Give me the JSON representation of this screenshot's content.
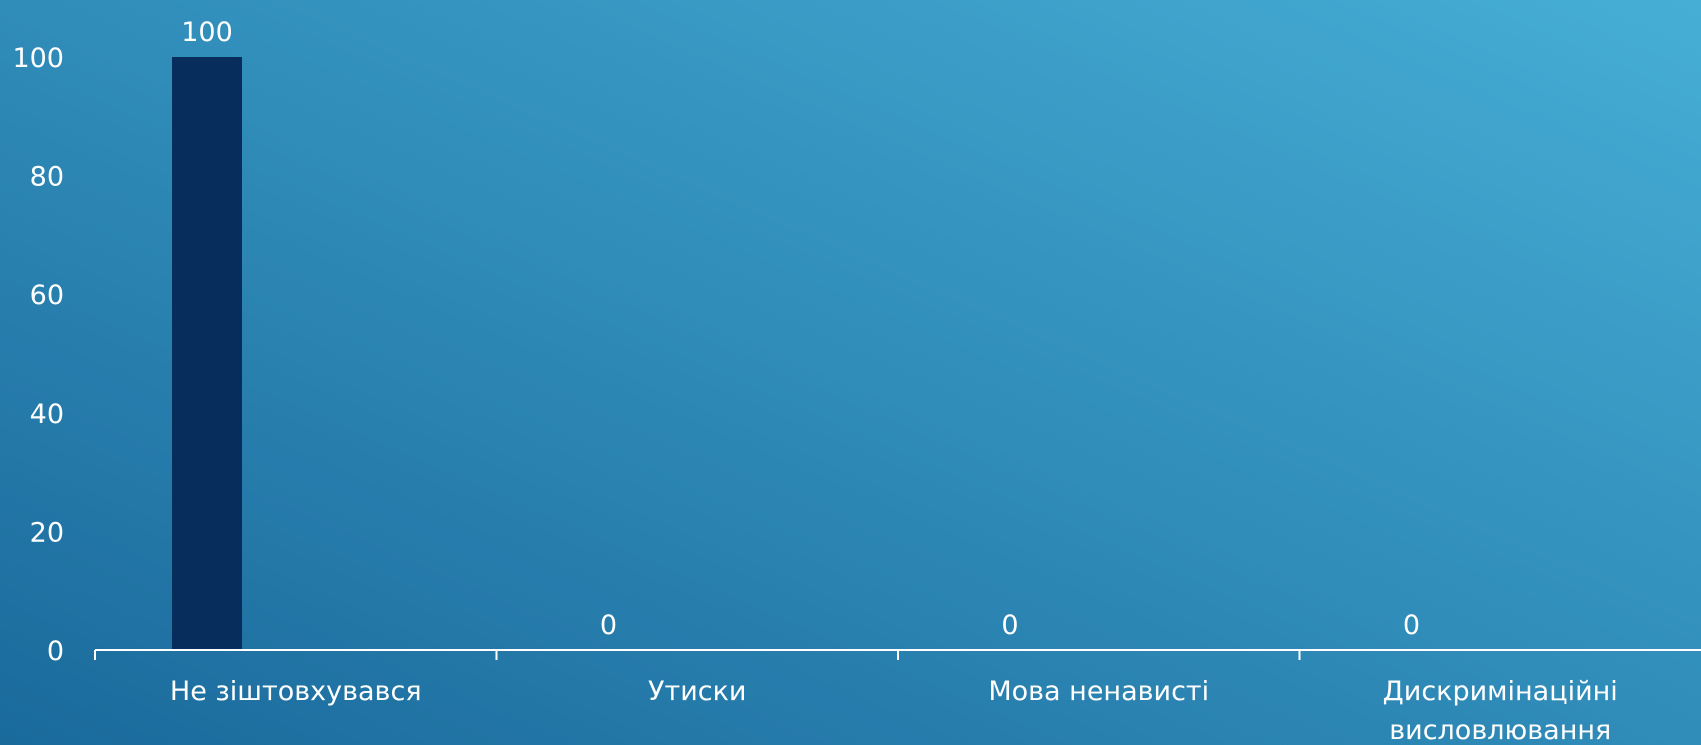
{
  "colors": {
    "bg_top_right": "#46aed5",
    "bg_bottom_left": "#1a6a9c",
    "bar": "#062d5c",
    "text": "#ffffff",
    "axis": "#ffffff"
  },
  "chart_data": {
    "type": "bar",
    "title": "",
    "xlabel": "",
    "ylabel": "",
    "categories": [
      "Не зіштовхувався",
      "Утиски",
      "Мова ненависті",
      "Дискримінаційні висловлювання"
    ],
    "values": [
      100,
      0,
      0,
      0
    ],
    "data_labels": [
      "100",
      "0",
      "0",
      "0"
    ],
    "ylim": [
      0,
      100
    ],
    "yticks": [
      "0",
      "20",
      "40",
      "60",
      "80",
      "100"
    ],
    "grid": false,
    "legend": "none"
  }
}
